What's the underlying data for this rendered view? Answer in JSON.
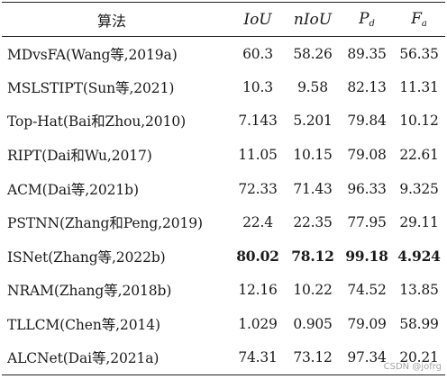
{
  "table": {
    "headers": {
      "method": "算法",
      "iou": "IoU",
      "niou": "nIoU",
      "pd_main": "P",
      "pd_sub": "d",
      "fa_main": "F",
      "fa_sub": "a"
    },
    "rows": [
      {
        "method": "MDvsFA(Wang等,2019a)",
        "iou": "60.3",
        "niou": "58.26",
        "pd": "89.35",
        "fa": "56.35"
      },
      {
        "method": "MSLSTIPT(Sun等,2021)",
        "iou": "10.3",
        "niou": "9.58",
        "pd": "82.13",
        "fa": "11.31"
      },
      {
        "method": "Top-Hat(Bai和Zhou,2010)",
        "iou": "7.143",
        "niou": "5.201",
        "pd": "79.84",
        "fa": "10.12"
      },
      {
        "method": "RIPT(Dai和Wu,2017)",
        "iou": "11.05",
        "niou": "10.15",
        "pd": "79.08",
        "fa": "22.61"
      },
      {
        "method": "ACM(Dai等,2021b)",
        "iou": "72.33",
        "niou": "71.43",
        "pd": "96.33",
        "fa": "9.325"
      },
      {
        "method": "PSTNN(Zhang和Peng,2019)",
        "iou": "22.4",
        "niou": "22.35",
        "pd": "77.95",
        "fa": "29.11"
      },
      {
        "method": "ISNet(Zhang等,2022b)",
        "iou": "80.02",
        "niou": "78.12",
        "pd": "99.18",
        "fa": "4.924"
      },
      {
        "method": "NRAM(Zhang等,2018b)",
        "iou": "12.16",
        "niou": "10.22",
        "pd": "74.52",
        "fa": "13.85"
      },
      {
        "method": "TLLCM(Chen等,2014)",
        "iou": "1.029",
        "niou": "0.905",
        "pd": "79.09",
        "fa": "58.99"
      },
      {
        "method": "ALCNet(Dai等,2021a)",
        "iou": "74.31",
        "niou": "73.12",
        "pd": "97.34",
        "fa": "20.21"
      }
    ]
  },
  "watermark": "CSDN @jofrg"
}
